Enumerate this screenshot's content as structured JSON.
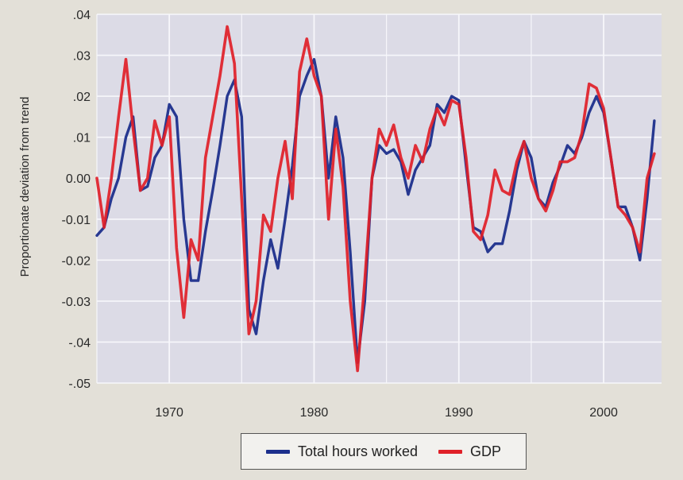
{
  "chart_data": {
    "type": "line",
    "title": "",
    "xlabel": "",
    "ylabel": "Proportionate deviation from trend",
    "xlim": [
      1965,
      2004
    ],
    "ylim": [
      -0.05,
      0.04
    ],
    "grid": true,
    "legend_position": "bottom-center",
    "x_ticks": [
      1970,
      1980,
      1990,
      2000
    ],
    "x_tick_labels": [
      "1970",
      "1980",
      "1990",
      "2000"
    ],
    "y_ticks": [
      0.04,
      0.03,
      0.02,
      0.01,
      0.0,
      -0.01,
      -0.02,
      -0.03,
      -0.04,
      -0.05
    ],
    "y_tick_labels": [
      ".04",
      ".03",
      ".02",
      ".01",
      "0.00",
      "-0.01",
      "-0.02",
      "-0.03",
      "-.04",
      "-.05"
    ],
    "series": [
      {
        "name": "Total hours worked",
        "color": "#1c2f8c",
        "x": [
          1965.0,
          1965.5,
          1966.0,
          1966.5,
          1967.0,
          1967.5,
          1968.0,
          1968.5,
          1969.0,
          1969.5,
          1970.0,
          1970.5,
          1971.0,
          1971.5,
          1972.0,
          1972.5,
          1973.0,
          1973.5,
          1974.0,
          1974.5,
          1975.0,
          1975.5,
          1976.0,
          1976.5,
          1977.0,
          1977.5,
          1978.0,
          1978.5,
          1979.0,
          1979.5,
          1980.0,
          1980.5,
          1981.0,
          1981.5,
          1982.0,
          1982.5,
          1983.0,
          1983.5,
          1984.0,
          1984.5,
          1985.0,
          1985.5,
          1986.0,
          1986.5,
          1987.0,
          1987.5,
          1988.0,
          1988.5,
          1989.0,
          1989.5,
          1990.0,
          1990.5,
          1991.0,
          1991.5,
          1992.0,
          1992.5,
          1993.0,
          1993.5,
          1994.0,
          1994.5,
          1995.0,
          1995.5,
          1996.0,
          1996.5,
          1997.0,
          1997.5,
          1998.0,
          1998.5,
          1999.0,
          1999.5,
          2000.0,
          2000.5,
          2001.0,
          2001.5,
          2002.0,
          2002.5,
          2003.0,
          2003.5
        ],
        "values": [
          -0.014,
          -0.012,
          -0.005,
          0.0,
          0.01,
          0.015,
          -0.003,
          -0.002,
          0.005,
          0.008,
          0.018,
          0.015,
          -0.01,
          -0.025,
          -0.025,
          -0.013,
          -0.003,
          0.008,
          0.02,
          0.024,
          0.015,
          -0.032,
          -0.038,
          -0.025,
          -0.015,
          -0.022,
          -0.01,
          0.003,
          0.02,
          0.025,
          0.029,
          0.02,
          0.0,
          0.015,
          0.005,
          -0.018,
          -0.045,
          -0.03,
          0.0,
          0.008,
          0.006,
          0.007,
          0.004,
          -0.004,
          0.002,
          0.005,
          0.008,
          0.018,
          0.016,
          0.02,
          0.019,
          0.003,
          -0.012,
          -0.013,
          -0.018,
          -0.016,
          -0.016,
          -0.008,
          0.002,
          0.009,
          0.005,
          -0.005,
          -0.007,
          -0.001,
          0.003,
          0.008,
          0.006,
          0.01,
          0.016,
          0.02,
          0.016,
          0.005,
          -0.007,
          -0.007,
          -0.012,
          -0.02,
          -0.005,
          0.014
        ]
      },
      {
        "name": "GDP",
        "color": "#e02028",
        "x": [
          1965.0,
          1965.5,
          1966.0,
          1966.5,
          1967.0,
          1967.5,
          1968.0,
          1968.5,
          1969.0,
          1969.5,
          1970.0,
          1970.5,
          1971.0,
          1971.5,
          1972.0,
          1972.5,
          1973.0,
          1973.5,
          1974.0,
          1974.5,
          1975.0,
          1975.5,
          1976.0,
          1976.5,
          1977.0,
          1977.5,
          1978.0,
          1978.5,
          1979.0,
          1979.5,
          1980.0,
          1980.5,
          1981.0,
          1981.5,
          1982.0,
          1982.5,
          1983.0,
          1983.5,
          1984.0,
          1984.5,
          1985.0,
          1985.5,
          1986.0,
          1986.5,
          1987.0,
          1987.5,
          1988.0,
          1988.5,
          1989.0,
          1989.5,
          1990.0,
          1990.5,
          1991.0,
          1991.5,
          1992.0,
          1992.5,
          1993.0,
          1993.5,
          1994.0,
          1994.5,
          1995.0,
          1995.5,
          1996.0,
          1996.5,
          1997.0,
          1997.5,
          1998.0,
          1998.5,
          1999.0,
          1999.5,
          2000.0,
          2000.5,
          2001.0,
          2001.5,
          2002.0,
          2002.5,
          2003.0,
          2003.5
        ],
        "values": [
          0.0,
          -0.012,
          0.0,
          0.015,
          0.029,
          0.012,
          -0.003,
          0.0,
          0.014,
          0.008,
          0.015,
          -0.017,
          -0.034,
          -0.015,
          -0.02,
          0.005,
          0.015,
          0.025,
          0.037,
          0.028,
          -0.005,
          -0.038,
          -0.03,
          -0.009,
          -0.013,
          0.0,
          0.009,
          -0.005,
          0.026,
          0.034,
          0.025,
          0.02,
          -0.01,
          0.012,
          -0.002,
          -0.03,
          -0.047,
          -0.025,
          0.0,
          0.012,
          0.008,
          0.013,
          0.005,
          0.0,
          0.008,
          0.004,
          0.012,
          0.017,
          0.013,
          0.019,
          0.018,
          0.005,
          -0.013,
          -0.015,
          -0.009,
          0.002,
          -0.003,
          -0.004,
          0.004,
          0.009,
          0.0,
          -0.005,
          -0.008,
          -0.003,
          0.004,
          0.004,
          0.005,
          0.011,
          0.023,
          0.022,
          0.017,
          0.005,
          -0.007,
          -0.009,
          -0.012,
          -0.018,
          0.0,
          0.006
        ]
      }
    ]
  },
  "legend": {
    "items": [
      {
        "label": "Total hours worked",
        "color": "#1c2f8c"
      },
      {
        "label": "GDP",
        "color": "#e02028"
      }
    ]
  },
  "colors": {
    "page_background": "#e3e0d8",
    "plot_background": "#dcdbe6",
    "grid": "#f7f7fb"
  }
}
